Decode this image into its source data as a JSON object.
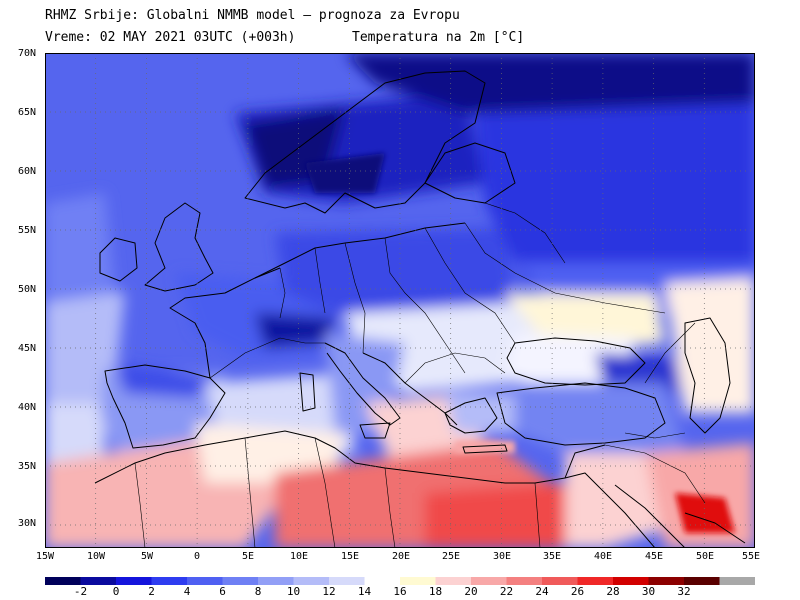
{
  "header": {
    "line1": "RHMZ Srbije: Globalni NMMB model — prognoza za Evropu",
    "line2_left": "Vreme: 02 MAY 2021 03UTC (+003h)",
    "line2_right": "Temperatura na 2m [°C]"
  },
  "map": {
    "type": "heatmap",
    "variable": "Temperatura na 2m",
    "units": "°C",
    "lon_range": [
      -15,
      55
    ],
    "lat_range": [
      28,
      70
    ],
    "lat_ticks": [
      "70N",
      "65N",
      "60N",
      "55N",
      "50N",
      "45N",
      "40N",
      "35N",
      "30N"
    ],
    "lon_ticks": [
      "15W",
      "10W",
      "5W",
      "0",
      "5E",
      "10E",
      "15E",
      "20E",
      "25E",
      "30E",
      "35E",
      "40E",
      "45E",
      "50E",
      "55E"
    ],
    "grid": "dotted"
  },
  "colorbar": {
    "labels": [
      "-2",
      "0",
      "2",
      "4",
      "6",
      "8",
      "10",
      "12",
      "14",
      "16",
      "18",
      "20",
      "22",
      "24",
      "26",
      "28",
      "30",
      "32"
    ],
    "colors": [
      "#00005a",
      "#0a0a9e",
      "#1414dc",
      "#2e3cf0",
      "#4f60f2",
      "#6f80f4",
      "#929ff6",
      "#b4bcf8",
      "#d6dafa",
      "#ffffff",
      "#fffad2",
      "#fcd2d2",
      "#f8a8a8",
      "#f48080",
      "#f05a5a",
      "#f02828",
      "#d20000",
      "#8c0000",
      "#5a0000",
      "#a8a8a8"
    ]
  }
}
